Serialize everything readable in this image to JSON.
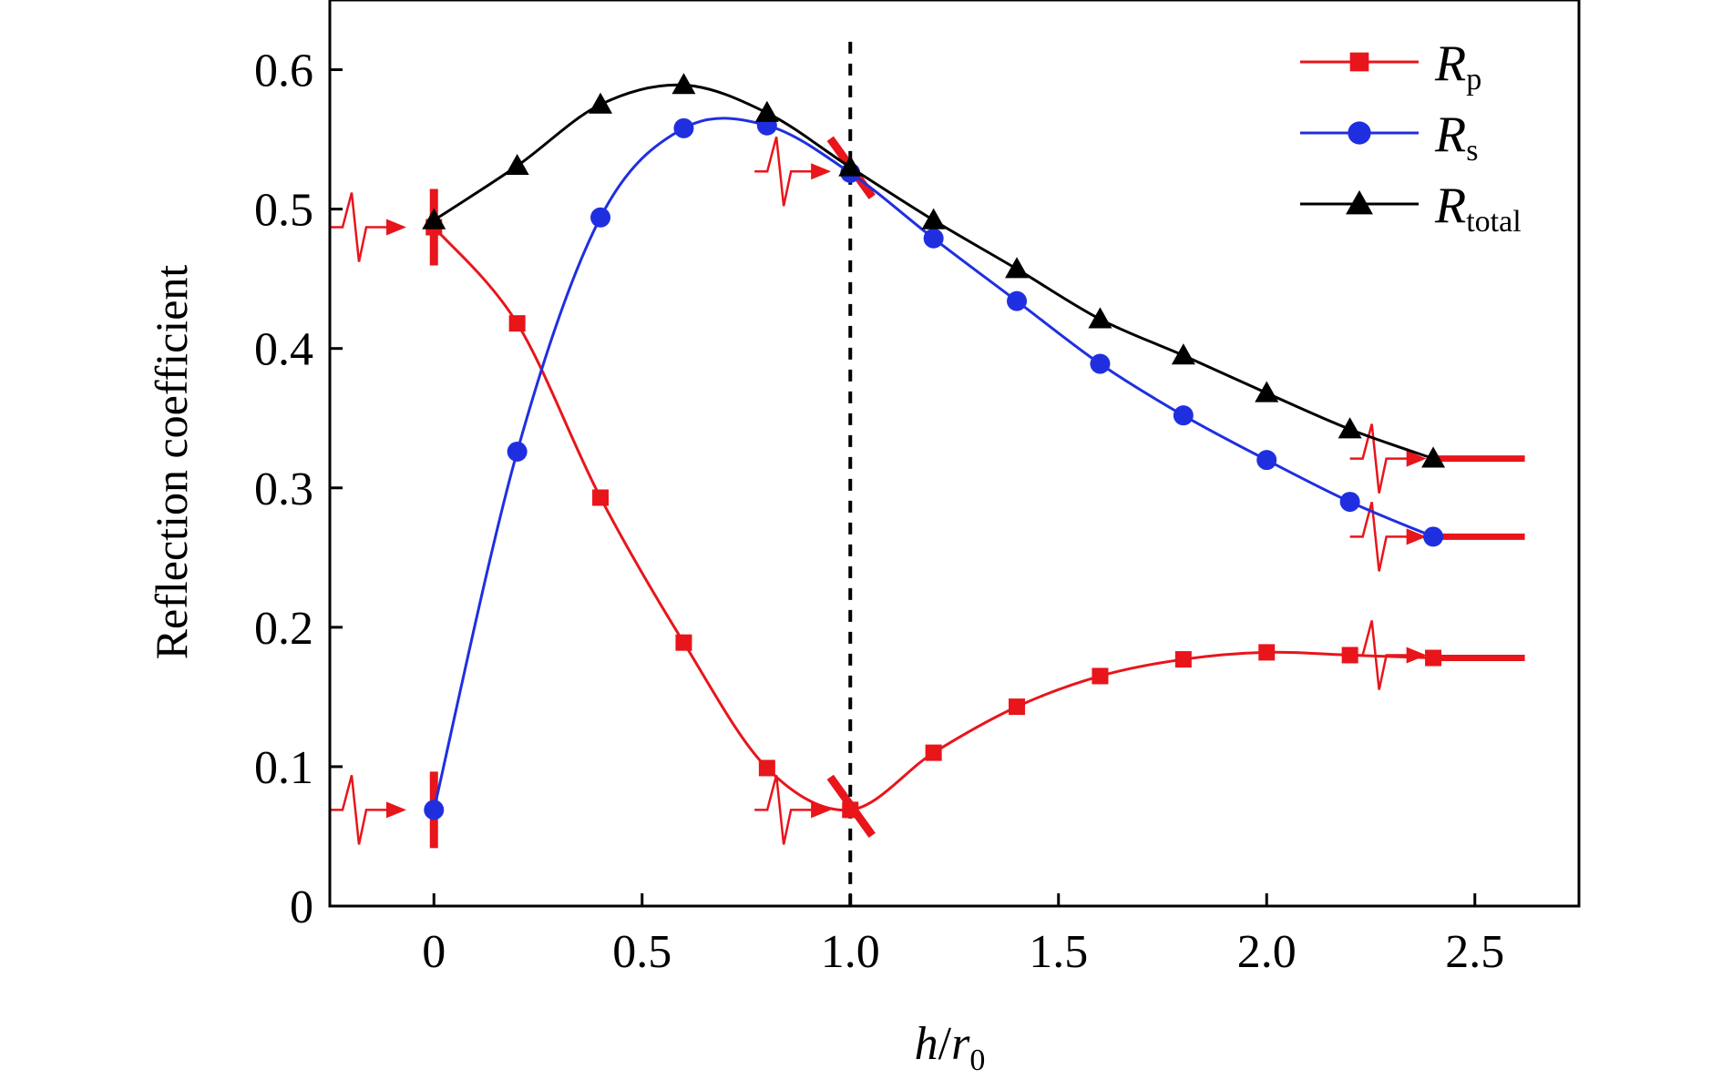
{
  "chart_data": {
    "type": "line",
    "title": "",
    "xlabel": {
      "main": "h",
      "sep": "/",
      "var": "r",
      "sub": "0"
    },
    "ylabel": "Reflection coefficient",
    "xlim": [
      -0.25,
      2.75
    ],
    "ylim": [
      0,
      0.65
    ],
    "xticks": [
      {
        "value": 0,
        "label": "0"
      },
      {
        "value": 0.5,
        "label": "0.5"
      },
      {
        "value": 1.0,
        "label": "1.0"
      },
      {
        "value": 1.5,
        "label": "1.5"
      },
      {
        "value": 2.0,
        "label": "2.0"
      },
      {
        "value": 2.5,
        "label": "2.5"
      }
    ],
    "yticks": [
      {
        "value": 0,
        "label": "0"
      },
      {
        "value": 0.1,
        "label": "0.1"
      },
      {
        "value": 0.2,
        "label": "0.2"
      },
      {
        "value": 0.3,
        "label": "0.3"
      },
      {
        "value": 0.4,
        "label": "0.4"
      },
      {
        "value": 0.5,
        "label": "0.5"
      },
      {
        "value": 0.6,
        "label": "0.6"
      }
    ],
    "grid": false,
    "legend_position": "top-right",
    "reference_line": {
      "x": 1.0,
      "style": "dashed"
    },
    "x": [
      0,
      0.2,
      0.4,
      0.6,
      0.8,
      1.0,
      1.2,
      1.4,
      1.6,
      1.8,
      2.0,
      2.2,
      2.4
    ],
    "series": [
      {
        "name": "R",
        "sub": "p",
        "color": "#e8151b",
        "marker": "square",
        "values": [
          0.487,
          0.418,
          0.293,
          0.189,
          0.099,
          0.069,
          0.11,
          0.143,
          0.165,
          0.177,
          0.182,
          0.18,
          0.178
        ]
      },
      {
        "name": "R",
        "sub": "s",
        "color": "#1f2fe0",
        "marker": "circle",
        "values": [
          0.069,
          0.326,
          0.494,
          0.558,
          0.56,
          0.526,
          0.479,
          0.434,
          0.389,
          0.352,
          0.32,
          0.29,
          0.265
        ]
      },
      {
        "name": "R",
        "sub": "total",
        "color": "#000000",
        "marker": "triangle",
        "values": [
          0.492,
          0.531,
          0.575,
          0.589,
          0.569,
          0.53,
          0.492,
          0.457,
          0.421,
          0.395,
          0.368,
          0.342,
          0.321
        ]
      }
    ],
    "annotations": {
      "color": "#e8151b",
      "wave_arrows": [
        {
          "x": -0.25,
          "y": 0.487
        },
        {
          "x": -0.25,
          "y": 0.069
        },
        {
          "x": 0.77,
          "y": 0.527
        },
        {
          "x": 0.77,
          "y": 0.069
        },
        {
          "x": 2.2,
          "y": 0.321
        },
        {
          "x": 2.2,
          "y": 0.265
        },
        {
          "x": 2.2,
          "y": 0.18
        }
      ],
      "interfaces": [
        {
          "x": 0,
          "y": 0.487,
          "orientation": "vertical"
        },
        {
          "x": 0,
          "y": 0.069,
          "orientation": "vertical"
        },
        {
          "x": 1.0,
          "y": 0.527,
          "orientation": "diagonal"
        },
        {
          "x": 1.0,
          "y": 0.069,
          "orientation": "diagonal"
        }
      ],
      "tails": [
        {
          "x0": 2.4,
          "x1": 2.62,
          "y": 0.321
        },
        {
          "x0": 2.4,
          "x1": 2.62,
          "y": 0.265
        },
        {
          "x0": 2.4,
          "x1": 2.62,
          "y": 0.178
        }
      ]
    }
  }
}
